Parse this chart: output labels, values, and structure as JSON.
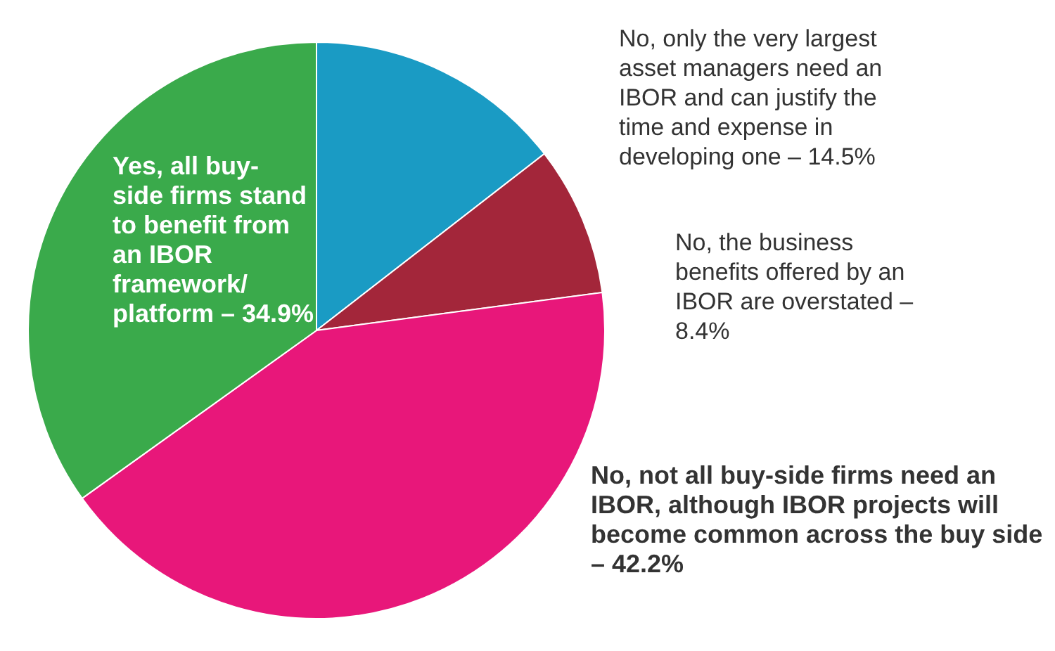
{
  "chart_data": {
    "type": "pie",
    "categories": [
      "No, only the very largest asset managers need an IBOR and can justify the time and expense in developing one –",
      "No, the business benefits offered by an IBOR are overstated –",
      "No, not all buy-side firms need an IBOR, although IBOR projects will become common across the buy side –",
      "Yes, all buy-side firms stand to benefit from an IBOR framework/ platform –"
    ],
    "values": [
      14.5,
      8.4,
      42.2,
      34.9
    ],
    "value_labels": [
      "14.5%",
      "8.4%",
      "42.2%",
      "34.9%"
    ],
    "colors": [
      "#1a9bc4",
      "#a3263a",
      "#e8177a",
      "#3aaa4b"
    ]
  }
}
